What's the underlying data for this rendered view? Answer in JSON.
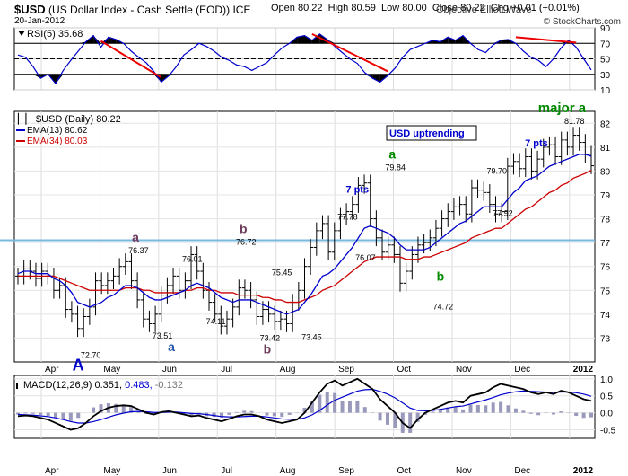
{
  "header": {
    "symbol": "$USD",
    "name": "(US Dollar Index - Cash Settle (EOD))",
    "exchange": "ICE",
    "date": "20-Jan-2012",
    "open_label": "Open",
    "open": "80.22",
    "high_label": "High",
    "high": "80.59",
    "low_label": "Low",
    "low": "80.00",
    "close_label": "Close",
    "close": "80.22",
    "chg_label": "Chg",
    "chg": "+0.01 (+0.01%)",
    "copyright": "© StockCharts.com",
    "watermark": "Objective Elliott Wave"
  },
  "chart_data": [
    {
      "type": "line",
      "name": "rsi",
      "legend": "RSI(5) 35.68",
      "ylim": [
        10,
        90
      ],
      "ticks": [
        10,
        30,
        50,
        70,
        90
      ],
      "overbought": 70,
      "oversold": 30,
      "series": [
        {
          "name": "RSI(5)",
          "color": "#0000cc",
          "values": [
            55,
            52,
            40,
            25,
            30,
            18,
            35,
            48,
            60,
            72,
            80,
            65,
            78,
            75,
            70,
            60,
            52,
            45,
            34,
            20,
            28,
            40,
            55,
            62,
            70,
            66,
            60,
            52,
            48,
            42,
            40,
            35,
            40,
            45,
            55,
            64,
            70,
            78,
            80,
            74,
            82,
            75,
            66,
            58,
            50,
            44,
            32,
            25,
            20,
            28,
            38,
            52,
            62,
            66,
            70,
            74,
            72,
            78,
            74,
            80,
            70,
            62,
            58,
            68,
            74,
            75,
            70,
            60,
            52,
            48,
            40,
            50,
            64,
            74,
            65,
            50,
            35.68
          ]
        }
      ],
      "divergence_markers": [
        {
          "from": 11,
          "to": 19
        },
        {
          "from": 39,
          "to": 49
        },
        {
          "from": 66,
          "to": 74
        }
      ]
    },
    {
      "type": "bar",
      "name": "price",
      "legend": "$USD (Daily) 80.22",
      "ylim": [
        72,
        82.5
      ],
      "ticks": [
        73,
        74,
        75,
        76,
        77,
        78,
        79,
        80,
        81,
        82
      ],
      "months": [
        "Apr",
        "May",
        "Jun",
        "Jul",
        "Aug",
        "Sep",
        "Oct",
        "Nov",
        "Dec",
        "2012"
      ],
      "horizontal_line": 77.1,
      "ema_labels": [
        {
          "label": "EMA(13) 80.62",
          "color": "#0000cc"
        },
        {
          "label": "EMA(34) 80.03",
          "color": "#cc0000"
        }
      ],
      "annotation_box": "USD uptrending",
      "close": [
        75.6,
        75.9,
        75.8,
        75.5,
        75.8,
        75.6,
        75.0,
        75.2,
        74.2,
        74.0,
        73.4,
        73.9,
        74.3,
        75.4,
        75.2,
        75.4,
        75.6,
        76.0,
        76.2,
        75.4,
        74.6,
        73.8,
        73.6,
        74.0,
        74.8,
        75.2,
        75.6,
        75.0,
        75.4,
        76.5,
        75.8,
        75.0,
        74.5,
        74.0,
        73.5,
        73.8,
        74.3,
        75.1,
        75.0,
        74.6,
        73.9,
        74.2,
        74.0,
        73.7,
        73.8,
        73.6,
        74.5,
        75.0,
        76.0,
        76.8,
        77.5,
        77.8,
        76.6,
        77.5,
        78.1,
        78.3,
        78.6,
        79.4,
        79.5,
        78.0,
        77.2,
        76.6,
        76.9,
        76.5,
        75.3,
        75.8,
        76.5,
        76.9,
        77.0,
        77.2,
        77.6,
        78.0,
        78.3,
        78.5,
        78.6,
        78.2,
        79.3,
        79.2,
        79.1,
        78.6,
        78.2,
        78.3,
        80.2,
        80.4,
        80.1,
        80.6,
        80.0,
        80.5,
        81.0,
        81.1,
        80.6,
        81.3,
        81.0,
        81.5,
        81.2,
        80.7,
        80.22
      ],
      "ema13": [
        75.7,
        75.8,
        75.8,
        75.7,
        75.7,
        75.7,
        75.5,
        75.4,
        75.2,
        74.9,
        74.5,
        74.4,
        74.3,
        74.4,
        74.5,
        74.7,
        74.8,
        75.0,
        75.2,
        75.2,
        75.1,
        74.9,
        74.7,
        74.6,
        74.6,
        74.7,
        74.8,
        74.9,
        75.0,
        75.2,
        75.3,
        75.2,
        75.1,
        74.9,
        74.7,
        74.6,
        74.5,
        74.6,
        74.6,
        74.6,
        74.5,
        74.4,
        74.3,
        74.2,
        74.1,
        74.0,
        74.1,
        74.2,
        74.5,
        74.8,
        75.2,
        75.6,
        75.7,
        75.9,
        76.2,
        76.5,
        76.8,
        77.2,
        77.6,
        77.7,
        77.6,
        77.5,
        77.4,
        77.2,
        76.9,
        76.7,
        76.7,
        76.7,
        76.7,
        76.8,
        77.0,
        77.2,
        77.4,
        77.6,
        77.8,
        77.9,
        78.1,
        78.3,
        78.5,
        78.5,
        78.5,
        78.5,
        78.8,
        79.1,
        79.3,
        79.6,
        79.7,
        79.8,
        80.0,
        80.2,
        80.3,
        80.4,
        80.5,
        80.6,
        80.7,
        80.7,
        80.62
      ],
      "ema34": [
        75.6,
        75.6,
        75.6,
        75.6,
        75.6,
        75.6,
        75.6,
        75.5,
        75.4,
        75.3,
        75.2,
        75.1,
        75.0,
        75.0,
        75.0,
        75.0,
        75.0,
        75.0,
        75.1,
        75.1,
        75.1,
        75.0,
        75.0,
        74.9,
        74.9,
        74.9,
        74.9,
        74.9,
        75.0,
        75.0,
        75.1,
        75.1,
        75.0,
        75.0,
        74.9,
        74.9,
        74.9,
        74.8,
        74.8,
        74.8,
        74.8,
        74.7,
        74.7,
        74.6,
        74.6,
        74.5,
        74.5,
        74.5,
        74.6,
        74.7,
        74.8,
        75.0,
        75.1,
        75.2,
        75.4,
        75.6,
        75.8,
        76.0,
        76.2,
        76.3,
        76.4,
        76.4,
        76.4,
        76.4,
        76.4,
        76.3,
        76.3,
        76.3,
        76.4,
        76.4,
        76.5,
        76.6,
        76.7,
        76.8,
        76.9,
        77.0,
        77.2,
        77.3,
        77.4,
        77.5,
        77.6,
        77.6,
        77.8,
        78.0,
        78.2,
        78.4,
        78.5,
        78.7,
        78.9,
        79.1,
        79.2,
        79.4,
        79.5,
        79.7,
        79.8,
        79.9,
        80.03
      ]
    },
    {
      "type": "line",
      "name": "macd",
      "legend_label": "MACD(12,26,9)",
      "legend_values": [
        "0.351,",
        "0.483,",
        "-0.132"
      ],
      "legend_colors": [
        "#000000",
        "#0000cc",
        "#777777"
      ],
      "ylim": [
        -0.75,
        1.1
      ],
      "ticks": [
        -0.5,
        0.0,
        0.5,
        1.0
      ],
      "macd": [
        -0.1,
        -0.08,
        -0.1,
        -0.15,
        -0.2,
        -0.3,
        -0.4,
        -0.5,
        -0.45,
        -0.3,
        -0.1,
        0.05,
        0.15,
        0.2,
        0.22,
        0.2,
        0.1,
        0.0,
        -0.05,
        0.02,
        0.05,
        0.0,
        -0.05,
        -0.1,
        -0.08,
        -0.15,
        -0.2,
        -0.25,
        -0.18,
        -0.1,
        -0.05,
        -0.05,
        -0.1,
        -0.2,
        -0.25,
        -0.3,
        -0.25,
        -0.2,
        0.0,
        0.3,
        0.6,
        0.85,
        0.95,
        0.8,
        0.9,
        1.0,
        0.85,
        0.7,
        0.4,
        0.2,
        0.0,
        -0.3,
        -0.45,
        -0.2,
        0.0,
        0.1,
        0.2,
        0.3,
        0.35,
        0.3,
        0.5,
        0.55,
        0.6,
        0.75,
        0.85,
        0.8,
        0.75,
        0.7,
        0.6,
        0.55,
        0.6,
        0.55,
        0.65,
        0.6,
        0.5,
        0.4,
        0.351
      ],
      "signal": [
        -0.05,
        -0.06,
        -0.07,
        -0.09,
        -0.11,
        -0.15,
        -0.2,
        -0.26,
        -0.3,
        -0.3,
        -0.26,
        -0.2,
        -0.13,
        -0.06,
        -0.01,
        0.03,
        0.04,
        0.03,
        0.01,
        0.01,
        0.02,
        0.02,
        0.0,
        -0.02,
        -0.03,
        -0.05,
        -0.08,
        -0.11,
        -0.12,
        -0.12,
        -0.11,
        -0.1,
        -0.1,
        -0.12,
        -0.15,
        -0.18,
        -0.19,
        -0.19,
        -0.15,
        -0.06,
        0.07,
        0.23,
        0.37,
        0.46,
        0.55,
        0.64,
        0.68,
        0.69,
        0.63,
        0.55,
        0.44,
        0.29,
        0.14,
        0.07,
        0.06,
        0.07,
        0.1,
        0.14,
        0.18,
        0.2,
        0.26,
        0.32,
        0.38,
        0.45,
        0.53,
        0.58,
        0.62,
        0.64,
        0.63,
        0.62,
        0.61,
        0.6,
        0.61,
        0.61,
        0.59,
        0.55,
        0.483
      ]
    }
  ],
  "annotations": {
    "labels": [
      {
        "text": "76.37",
        "x": 20,
        "y": 76.37
      },
      {
        "text": "76.01",
        "x": 29,
        "y": 76.0
      },
      {
        "text": "76.72",
        "x": 38,
        "y": 76.72
      },
      {
        "text": "75.45",
        "x": 44,
        "y": 75.45
      },
      {
        "text": "73.51",
        "x": 24,
        "y": 73.51
      },
      {
        "text": "74.11",
        "x": 33,
        "y": 74.11
      },
      {
        "text": "73.42",
        "x": 42,
        "y": 73.42
      },
      {
        "text": "73.45",
        "x": 49,
        "y": 73.45
      },
      {
        "text": "72.70",
        "x": 12,
        "y": 72.7
      },
      {
        "text": "77.78",
        "x": 55,
        "y": 77.78
      },
      {
        "text": "76.07",
        "x": 58,
        "y": 76.07
      },
      {
        "text": "79.84",
        "x": 63,
        "y": 79.84
      },
      {
        "text": "74.72",
        "x": 71,
        "y": 74.72
      },
      {
        "text": "79.70",
        "x": 80,
        "y": 79.7
      },
      {
        "text": "77.92",
        "x": 81,
        "y": 77.92
      },
      {
        "text": "81.78",
        "x": 93,
        "y": 81.78
      }
    ],
    "waves": [
      {
        "text": "A",
        "x": 10,
        "y": 72.7
      },
      {
        "text": "a",
        "x": 20,
        "y": 76.37
      },
      {
        "text": "a",
        "x": 26,
        "y": 73.51
      },
      {
        "text": "b",
        "x": 38,
        "y": 76.72
      },
      {
        "text": "b",
        "x": 42,
        "y": 73.42
      },
      {
        "text": "a",
        "x": 63,
        "y": 79.84
      },
      {
        "text": "b",
        "x": 71,
        "y": 74.72
      },
      {
        "text": "major a",
        "x": 88,
        "y": 81.78
      }
    ],
    "pts": [
      {
        "text": "7 pts",
        "x": 57,
        "y": 79.84
      },
      {
        "text": "7 pts",
        "x": 87,
        "y": 81.78
      }
    ]
  }
}
